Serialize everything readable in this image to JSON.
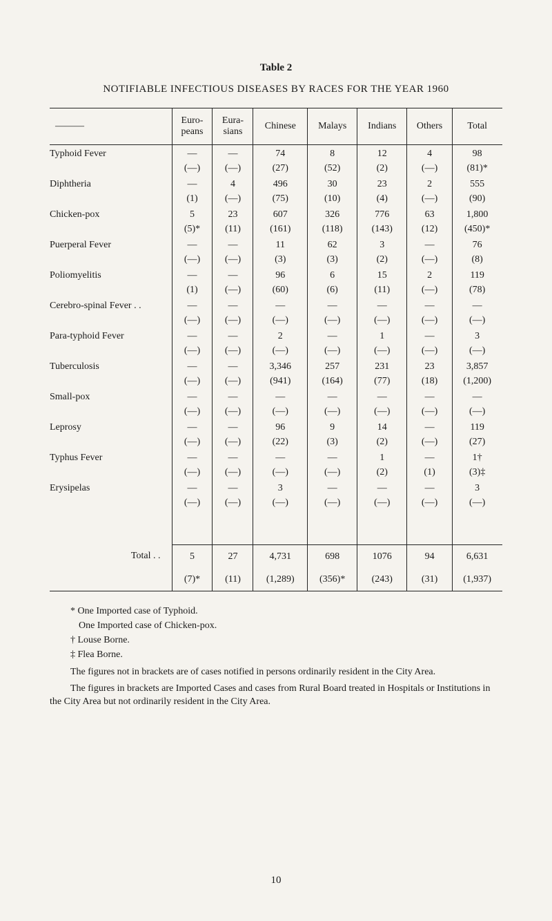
{
  "page": {
    "table_label": "Table 2",
    "title": "NOTIFIABLE INFECTIOUS DISEASES BY RACES FOR THE YEAR 1960",
    "page_number": "10"
  },
  "columns": [
    "——",
    "Euro-\npeans",
    "Eura-\nsians",
    "Chinese",
    "Malays",
    "Indians",
    "Others",
    "Total"
  ],
  "col_widths": [
    "27%",
    "9%",
    "9%",
    "12%",
    "11%",
    "11%",
    "10%",
    "11%"
  ],
  "rows": [
    {
      "label": "Typhoid Fever",
      "v": [
        "—",
        "—",
        "74",
        "8",
        "12",
        "4",
        "98"
      ],
      "b": [
        "(—)",
        "(—)",
        "(27)",
        "(52)",
        "(2)",
        "(—)",
        "(81)*"
      ]
    },
    {
      "label": "Diphtheria",
      "v": [
        "—",
        "4",
        "496",
        "30",
        "23",
        "2",
        "555"
      ],
      "b": [
        "(1)",
        "(—)",
        "(75)",
        "(10)",
        "(4)",
        "(—)",
        "(90)"
      ]
    },
    {
      "label": "Chicken-pox",
      "v": [
        "5",
        "23",
        "607",
        "326",
        "776",
        "63",
        "1,800"
      ],
      "b": [
        "(5)*",
        "(11)",
        "(161)",
        "(118)",
        "(143)",
        "(12)",
        "(450)*"
      ]
    },
    {
      "label": "Puerperal Fever",
      "v": [
        "—",
        "—",
        "11",
        "62",
        "3",
        "—",
        "76"
      ],
      "b": [
        "(—)",
        "(—)",
        "(3)",
        "(3)",
        "(2)",
        "(—)",
        "(8)"
      ]
    },
    {
      "label": "Poliomyelitis",
      "v": [
        "—",
        "—",
        "96",
        "6",
        "15",
        "2",
        "119"
      ],
      "b": [
        "(1)",
        "(—)",
        "(60)",
        "(6)",
        "(11)",
        "(—)",
        "(78)"
      ]
    },
    {
      "label": "Cerebro-spinal Fever . .",
      "v": [
        "—",
        "—",
        "—",
        "—",
        "—",
        "—",
        "—"
      ],
      "b": [
        "(—)",
        "(—)",
        "(—)",
        "(—)",
        "(—)",
        "(—)",
        "(—)"
      ]
    },
    {
      "label": "Para-typhoid Fever",
      "v": [
        "—",
        "—",
        "2",
        "—",
        "1",
        "—",
        "3"
      ],
      "b": [
        "(—)",
        "(—)",
        "(—)",
        "(—)",
        "(—)",
        "(—)",
        "(—)"
      ]
    },
    {
      "label": "Tuberculosis",
      "v": [
        "—",
        "—",
        "3,346",
        "257",
        "231",
        "23",
        "3,857"
      ],
      "b": [
        "(—)",
        "(—)",
        "(941)",
        "(164)",
        "(77)",
        "(18)",
        "(1,200)"
      ]
    },
    {
      "label": "Small-pox",
      "v": [
        "—",
        "—",
        "—",
        "—",
        "—",
        "—",
        "—"
      ],
      "b": [
        "(—)",
        "(—)",
        "(—)",
        "(—)",
        "(—)",
        "(—)",
        "(—)"
      ]
    },
    {
      "label": "Leprosy",
      "v": [
        "—",
        "—",
        "96",
        "9",
        "14",
        "—",
        "119"
      ],
      "b": [
        "(—)",
        "(—)",
        "(22)",
        "(3)",
        "(2)",
        "(—)",
        "(27)"
      ]
    },
    {
      "label": "Typhus Fever",
      "v": [
        "—",
        "—",
        "—",
        "—",
        "1",
        "—",
        "1†"
      ],
      "b": [
        "(—)",
        "(—)",
        "(—)",
        "(—)",
        "(2)",
        "(1)",
        "(3)‡"
      ]
    },
    {
      "label": "Erysipelas",
      "v": [
        "—",
        "—",
        "3",
        "—",
        "—",
        "—",
        "3"
      ],
      "b": [
        "(—)",
        "(—)",
        "(—)",
        "(—)",
        "(—)",
        "(—)",
        "(—)"
      ]
    }
  ],
  "total": {
    "label": "Total   . .",
    "v": [
      "5",
      "27",
      "4,731",
      "698",
      "1076",
      "94",
      "6,631"
    ],
    "b": [
      "(7)*",
      "(11)",
      "(1,289)",
      "(356)*",
      "(243)",
      "(31)",
      "(1,937)"
    ]
  },
  "footnotes": {
    "f1": "* One Imported case of Typhoid.",
    "f2": "One Imported case of Chicken-pox.",
    "f3": "† Louse Borne.",
    "f4": "‡ Flea Borne.",
    "p1": "The figures not in brackets are of cases notified in persons ordinarily resident in the City Area.",
    "p2": "The figures in brackets are Imported Cases and cases from Rural Board treated in Hos­pitals or Institutions in the City Area but not ordinarily resident in the City Area."
  }
}
